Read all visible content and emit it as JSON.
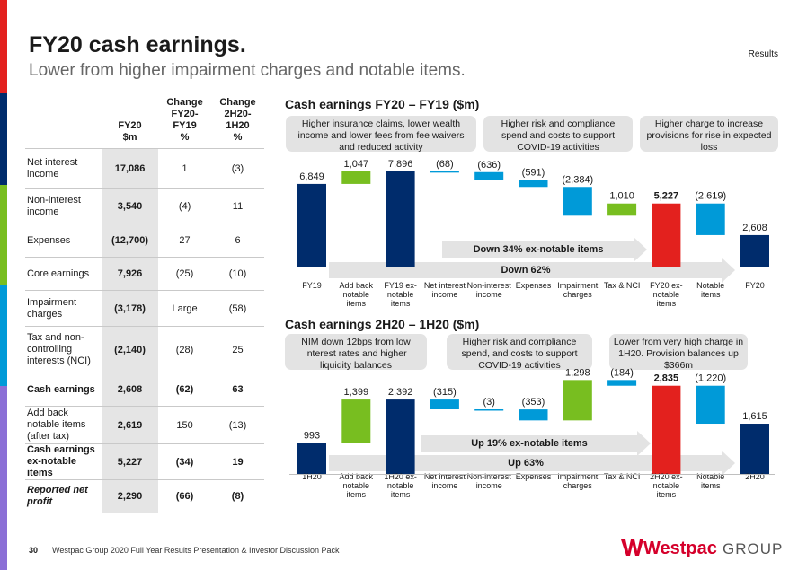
{
  "header": {
    "title": "FY20 cash earnings.",
    "subtitle": "Lower from higher impairment charges and notable items.",
    "section": "Results"
  },
  "colors": {
    "navy": "#002c6c",
    "green": "#78be20",
    "blue": "#009ad8",
    "red": "#e3211e",
    "callout": "#e3e3e3",
    "accent_stripes": [
      "#e3211e",
      "#002c6c",
      "#78be20",
      "#009ad8",
      "#8b6fd6"
    ]
  },
  "table": {
    "headers": [
      "",
      "FY20\n$m",
      "Change\nFY20-\nFY19\n%",
      "Change\n2H20-\n1H20\n%"
    ],
    "rows": [
      {
        "label": "Net interest income",
        "fy20": "17,086",
        "c1": "1",
        "c2": "(3)",
        "style": ""
      },
      {
        "label": "Non-interest income",
        "fy20": "3,540",
        "c1": "(4)",
        "c2": "11",
        "style": ""
      },
      {
        "label": "Expenses",
        "fy20": "(12,700)",
        "c1": "27",
        "c2": "6",
        "style": ""
      },
      {
        "label": "Core earnings",
        "fy20": "7,926",
        "c1": "(25)",
        "c2": "(10)",
        "style": ""
      },
      {
        "label": "Impairment charges",
        "fy20": "(3,178)",
        "c1": "Large",
        "c2": "(58)",
        "style": ""
      },
      {
        "label": "Tax and non-controlling interests (NCI)",
        "fy20": "(2,140)",
        "c1": "(28)",
        "c2": "25",
        "style": ""
      },
      {
        "label": "Cash earnings",
        "fy20": "2,608",
        "c1": "(62)",
        "c2": "63",
        "style": "bold"
      },
      {
        "label": "Add back notable items (after tax)",
        "fy20": "2,619",
        "c1": "150",
        "c2": "(13)",
        "style": ""
      },
      {
        "label": "Cash earnings ex-notable items",
        "fy20": "5,227",
        "c1": "(34)",
        "c2": "19",
        "style": "bold"
      },
      {
        "label": "Reported net profit",
        "fy20": "2,290",
        "c1": "(66)",
        "c2": "(8)",
        "style": "bold ital"
      }
    ]
  },
  "chart_data": [
    {
      "type": "bar",
      "subtype": "waterfall",
      "title": "Cash earnings FY20 – FY19 ($m)",
      "categories": [
        "FY19",
        "Add back notable items",
        "FY19 ex-notable items",
        "Net interest income",
        "Non-interest income",
        "Expenses",
        "Impairment charges",
        "Tax & NCI",
        "FY20 ex-notable items",
        "Notable items",
        "FY20"
      ],
      "tick_labels": [
        "FY19",
        "Add back\nnotable\nitems",
        "FY19 ex-\nnotable\nitems",
        "Net interest\nincome",
        "Non-interest\nincome",
        "Expenses",
        "Impairment\ncharges",
        "Tax & NCI",
        "FY20 ex-\nnotable\nitems",
        "Notable\nitems",
        "FY20"
      ],
      "values": [
        6849,
        1047,
        7896,
        -68,
        -636,
        -591,
        -2384,
        1010,
        5227,
        -2619,
        2608
      ],
      "kinds": [
        "total",
        "up",
        "total",
        "down",
        "down",
        "down",
        "down",
        "up",
        "total-red",
        "down",
        "total"
      ],
      "data_labels": [
        "6,849",
        "1,047",
        "7,896",
        "(68)",
        "(636)",
        "(591)",
        "(2,384)",
        "1,010",
        "5,227",
        "(2,619)",
        "2,608"
      ],
      "bold_labels": [
        false,
        false,
        false,
        false,
        false,
        false,
        false,
        false,
        true,
        false,
        false
      ],
      "ylim": [
        0,
        9000
      ],
      "callouts": [
        "Higher insurance claims, lower wealth income and lower fees from fee waivers and reduced activity",
        "Higher risk and compliance spend and costs to support COVID-19 activities",
        "Higher charge to increase provisions for rise in expected loss"
      ],
      "arrows": [
        "Down 34% ex-notable items",
        "Down 62%"
      ]
    },
    {
      "type": "bar",
      "subtype": "waterfall",
      "title": "Cash earnings 2H20 – 1H20 ($m)",
      "categories": [
        "1H20",
        "Add back notable items",
        "1H20 ex-notable items",
        "Net interest income",
        "Non-interest income",
        "Expenses",
        "Impairment charges",
        "Tax & NCI",
        "2H20 ex-notable items",
        "Notable items",
        "2H20"
      ],
      "tick_labels": [
        "1H20",
        "Add back\nnotable\nitems",
        "1H20 ex-\nnotable\nitems",
        "Net interest\nincome",
        "Non-interest\nincome",
        "Expenses",
        "Impairment\ncharges",
        "Tax & NCI",
        "2H20 ex-\nnotable\nitems",
        "Notable\nitems",
        "2H20"
      ],
      "values": [
        993,
        1399,
        2392,
        -315,
        -3,
        -353,
        1298,
        -184,
        2835,
        -1220,
        1615
      ],
      "kinds": [
        "total",
        "up",
        "total",
        "down",
        "down",
        "down",
        "up",
        "down",
        "total-red",
        "down",
        "total"
      ],
      "data_labels": [
        "993",
        "1,399",
        "2,392",
        "(315)",
        "(3)",
        "(353)",
        "1,298",
        "(184)",
        "2,835",
        "(1,220)",
        "1,615"
      ],
      "bold_labels": [
        false,
        false,
        false,
        false,
        false,
        false,
        false,
        false,
        true,
        false,
        false
      ],
      "ylim": [
        0,
        3000
      ],
      "callouts": [
        "NIM down 12bps from low interest rates and higher liquidity balances",
        "Higher risk and compliance spend, and costs to support COVID-19 activities",
        "Lower from very high charge in 1H20. Provision balances up $366m"
      ],
      "arrows": [
        "Up 19% ex-notable items",
        "Up 63%"
      ]
    }
  ],
  "footer": {
    "page": "30",
    "text": "Westpac Group 2020 Full Year Results Presentation & Investor Discussion Pack",
    "brand_word": "Westpac",
    "brand_group": "GROUP"
  }
}
